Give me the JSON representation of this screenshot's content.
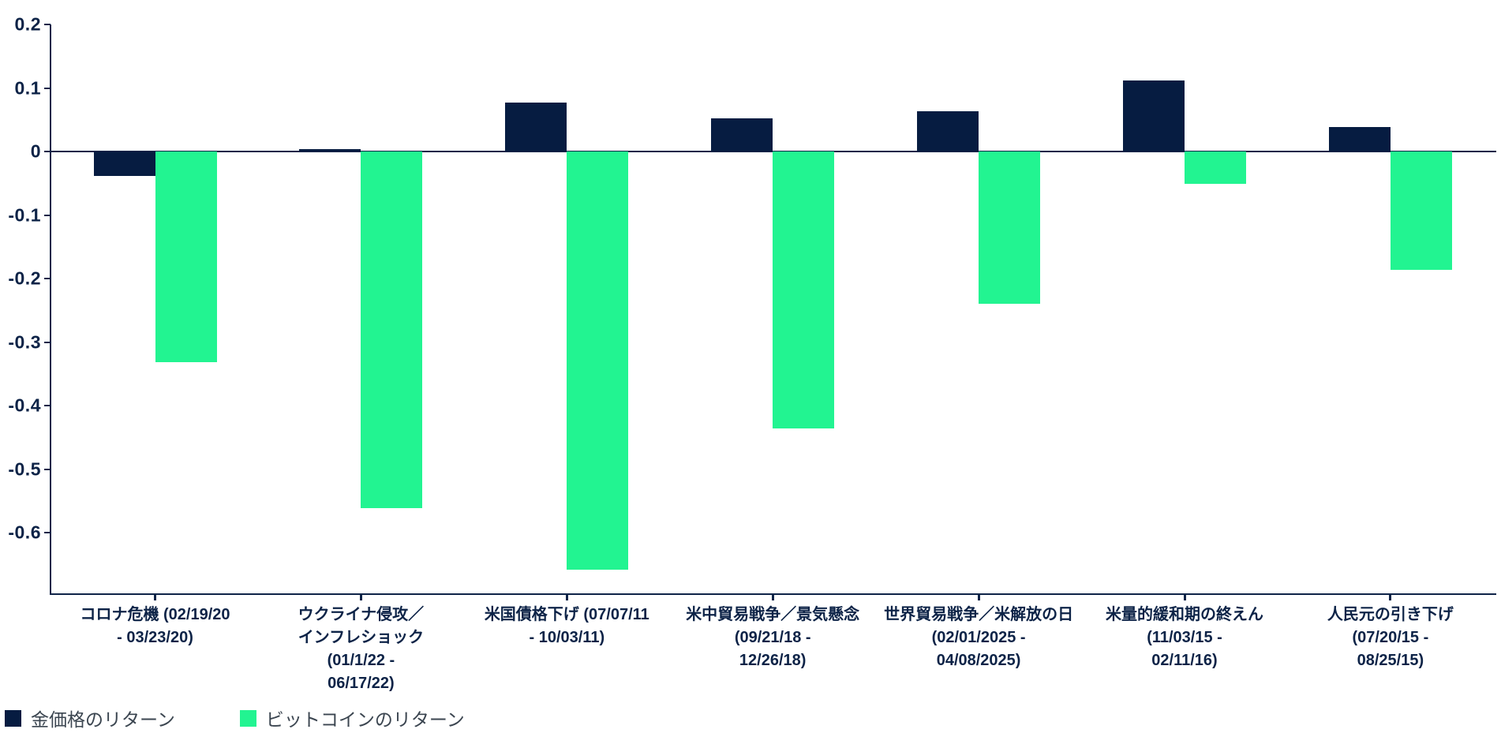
{
  "chart_data": {
    "type": "bar",
    "title": "",
    "xlabel": "",
    "ylabel": "",
    "categories": [
      "コロナ危機 (02/19/20\n- 03/23/20)",
      "ウクライナ侵攻／\nインフレショック\n(01/1/22 -\n06/17/22)",
      "米国債格下げ (07/07/11\n- 10/03/11)",
      "米中貿易戦争／景気懸念\n(09/21/18 -\n12/26/18)",
      "世界貿易戦争／米解放の日\n(02/01/2025 -\n04/08/2025)",
      "米量的緩和期の終えん\n(11/03/15 -\n02/11/16)",
      "人民元の引き下げ\n(07/20/15 -\n08/25/15)"
    ],
    "series": [
      {
        "name": "金価格のリターン",
        "color": "#061c41",
        "values": [
          -0.039,
          0.004,
          0.077,
          0.052,
          0.063,
          0.112,
          0.038
        ]
      },
      {
        "name": "ビットコインのリターン",
        "color": "#22f491",
        "values": [
          -0.332,
          -0.561,
          -0.659,
          -0.436,
          -0.24,
          -0.051,
          -0.186
        ]
      }
    ],
    "y_ticks": [
      0.2,
      0.1,
      0,
      -0.1,
      -0.2,
      -0.3,
      -0.4,
      -0.5,
      -0.6
    ],
    "ylim": [
      0.2,
      -0.7
    ],
    "grid": false,
    "legend_position": "bottom-left"
  },
  "legend": {
    "items": [
      {
        "label": "金価格のリターン",
        "color": "#061c41"
      },
      {
        "label": "ビットコインのリターン",
        "color": "#22f491"
      }
    ]
  },
  "colors": {
    "gold_series": "#061c41",
    "bitcoin_series": "#22f491",
    "axis": "#0f2448",
    "tick_text": "#0d2347",
    "legend_text": "#3b4550",
    "background": "#ffffff"
  }
}
